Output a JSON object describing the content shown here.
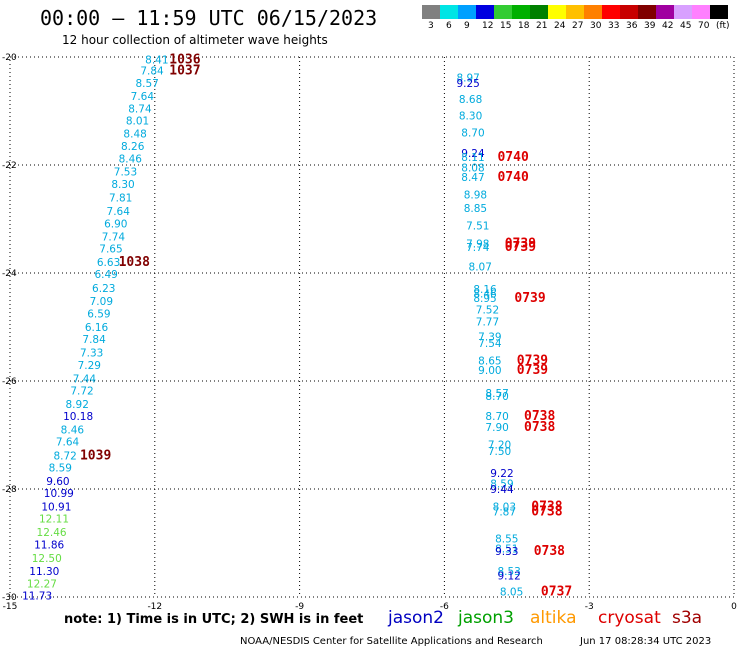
{
  "title": "00:00 – 11:59 UTC 06/15/2023",
  "subtitle": "12 hour collection of altimeter wave heights",
  "colorbar": {
    "colors": [
      "#808080",
      "#00e5e5",
      "#00a0ff",
      "#0000e0",
      "#33cc33",
      "#00b000",
      "#008000",
      "#ffff00",
      "#ffc000",
      "#ff8000",
      "#ff0000",
      "#c80000",
      "#800000",
      "#a000a0",
      "#d8a0ff",
      "#ff80ff",
      "#000000"
    ],
    "labels": [
      "3",
      "6",
      "9",
      "12",
      "15",
      "18",
      "21",
      "24",
      "27",
      "30",
      "33",
      "36",
      "39",
      "42",
      "45",
      "70",
      "(ft)"
    ]
  },
  "note": "note:  1) Time is in UTC;  2) SWH is in feet",
  "legend": [
    {
      "name": "jason2",
      "color": "#0000c0"
    },
    {
      "name": "jason3",
      "color": "#00a000"
    },
    {
      "name": "altika",
      "color": "#ff9900"
    },
    {
      "name": "cryosat",
      "color": "#dd0000"
    },
    {
      "name": "s3a",
      "color": "#a00000"
    }
  ],
  "footer_left": "NOAA/NESDIS Center for Satellite Applications and Research",
  "footer_right": "Jun 17 08:28:34 UTC 2023",
  "chart_data": {
    "type": "scatter",
    "xlim": [
      -15,
      0
    ],
    "ylim": [
      -30,
      -20
    ],
    "x_ticks": [
      -15,
      -12,
      -9,
      -6,
      -3,
      0
    ],
    "y_ticks": [
      -20,
      -22,
      -24,
      -26,
      -28,
      -30
    ],
    "grid": true,
    "labels": [
      {
        "x": -12.2,
        "y": -20.05,
        "t": "8.41",
        "c": "#00aadd"
      },
      {
        "x": -12.3,
        "y": -20.25,
        "t": "7.84",
        "c": "#00aadd"
      },
      {
        "x": -12.4,
        "y": -20.48,
        "t": "8.57",
        "c": "#00aadd"
      },
      {
        "x": -12.5,
        "y": -20.72,
        "t": "7.64",
        "c": "#00aadd"
      },
      {
        "x": -12.55,
        "y": -20.95,
        "t": "8.74",
        "c": "#00aadd"
      },
      {
        "x": -12.6,
        "y": -21.18,
        "t": "8.01",
        "c": "#00aadd"
      },
      {
        "x": -12.65,
        "y": -21.42,
        "t": "8.48",
        "c": "#00aadd"
      },
      {
        "x": -12.7,
        "y": -21.65,
        "t": "8.26",
        "c": "#00aadd"
      },
      {
        "x": -12.75,
        "y": -21.88,
        "t": "8.46",
        "c": "#00aadd"
      },
      {
        "x": -12.85,
        "y": -22.12,
        "t": "7.53",
        "c": "#00aadd"
      },
      {
        "x": -12.9,
        "y": -22.35,
        "t": "8.30",
        "c": "#00aadd"
      },
      {
        "x": -12.95,
        "y": -22.6,
        "t": "7.81",
        "c": "#00aadd"
      },
      {
        "x": -13.0,
        "y": -22.85,
        "t": "7.64",
        "c": "#00aadd"
      },
      {
        "x": -13.05,
        "y": -23.08,
        "t": "6.90",
        "c": "#00aadd"
      },
      {
        "x": -13.1,
        "y": -23.32,
        "t": "7.74",
        "c": "#00aadd"
      },
      {
        "x": -13.15,
        "y": -23.55,
        "t": "7.65",
        "c": "#00aadd"
      },
      {
        "x": -13.2,
        "y": -23.8,
        "t": "6.63",
        "c": "#00aadd"
      },
      {
        "x": -13.25,
        "y": -24.02,
        "t": "6.49",
        "c": "#00aadd"
      },
      {
        "x": -13.3,
        "y": -24.28,
        "t": "6.23",
        "c": "#00aadd"
      },
      {
        "x": -13.35,
        "y": -24.52,
        "t": "7.09",
        "c": "#00aadd"
      },
      {
        "x": -13.4,
        "y": -24.75,
        "t": "6.59",
        "c": "#00aadd"
      },
      {
        "x": -13.45,
        "y": -25.0,
        "t": "6.16",
        "c": "#00aadd"
      },
      {
        "x": -13.5,
        "y": -25.22,
        "t": "7.84",
        "c": "#00aadd"
      },
      {
        "x": -13.55,
        "y": -25.47,
        "t": "7.33",
        "c": "#00aadd"
      },
      {
        "x": -13.6,
        "y": -25.7,
        "t": "7.29",
        "c": "#00aadd"
      },
      {
        "x": -13.7,
        "y": -25.95,
        "t": "7.44",
        "c": "#00aadd"
      },
      {
        "x": -13.75,
        "y": -26.18,
        "t": "7.72",
        "c": "#00aadd"
      },
      {
        "x": -13.85,
        "y": -26.43,
        "t": "8.92",
        "c": "#00aadd"
      },
      {
        "x": -13.9,
        "y": -26.65,
        "t": "10.18",
        "c": "#0000cc"
      },
      {
        "x": -13.95,
        "y": -26.9,
        "t": "8.46",
        "c": "#00aadd"
      },
      {
        "x": -14.05,
        "y": -27.12,
        "t": "7.64",
        "c": "#00aadd"
      },
      {
        "x": -14.1,
        "y": -27.38,
        "t": "8.72",
        "c": "#00aadd"
      },
      {
        "x": -14.2,
        "y": -27.6,
        "t": "8.59",
        "c": "#00aadd"
      },
      {
        "x": -14.25,
        "y": -27.85,
        "t": "9.60",
        "c": "#0000cc"
      },
      {
        "x": -14.3,
        "y": -28.07,
        "t": "10.99",
        "c": "#0000cc"
      },
      {
        "x": -14.35,
        "y": -28.32,
        "t": "10.91",
        "c": "#0000cc"
      },
      {
        "x": -14.4,
        "y": -28.55,
        "t": "12.11",
        "c": "#66dd44"
      },
      {
        "x": -14.45,
        "y": -28.8,
        "t": "12.46",
        "c": "#66dd44"
      },
      {
        "x": -14.5,
        "y": -29.03,
        "t": "11.86",
        "c": "#0000cc"
      },
      {
        "x": -14.55,
        "y": -29.28,
        "t": "12.50",
        "c": "#66dd44"
      },
      {
        "x": -14.6,
        "y": -29.52,
        "t": "11.30",
        "c": "#0000cc"
      },
      {
        "x": -14.65,
        "y": -29.75,
        "t": "12.27",
        "c": "#66dd44"
      },
      {
        "x": -14.75,
        "y": -29.97,
        "t": "11.73",
        "c": "#0000cc"
      },
      {
        "x": -11.7,
        "y": -20.05,
        "t": "1036",
        "c": "#800000"
      },
      {
        "x": -11.7,
        "y": -20.25,
        "t": "1037",
        "c": "#800000"
      },
      {
        "x": -12.75,
        "y": -23.8,
        "t": "1038",
        "c": "#800000"
      },
      {
        "x": -13.55,
        "y": -27.38,
        "t": "1039",
        "c": "#800000"
      },
      {
        "x": -5.75,
        "y": -20.38,
        "t": "8.97",
        "c": "#00aadd"
      },
      {
        "x": -5.75,
        "y": -20.48,
        "t": "9.25",
        "c": "#0000cc"
      },
      {
        "x": -5.7,
        "y": -20.78,
        "t": "8.68",
        "c": "#00aadd"
      },
      {
        "x": -5.7,
        "y": -21.08,
        "t": "8.30",
        "c": "#00aadd"
      },
      {
        "x": -5.65,
        "y": -21.4,
        "t": "8.70",
        "c": "#00aadd"
      },
      {
        "x": -5.65,
        "y": -21.78,
        "t": "9.24",
        "c": "#0000cc"
      },
      {
        "x": -5.65,
        "y": -21.85,
        "t": "8.11",
        "c": "#00aadd"
      },
      {
        "x": -5.65,
        "y": -22.05,
        "t": "8.08",
        "c": "#00aadd"
      },
      {
        "x": -5.65,
        "y": -22.22,
        "t": "8.47",
        "c": "#00aadd"
      },
      {
        "x": -5.6,
        "y": -22.55,
        "t": "8.98",
        "c": "#00aadd"
      },
      {
        "x": -5.6,
        "y": -22.8,
        "t": "8.85",
        "c": "#00aadd"
      },
      {
        "x": -5.55,
        "y": -23.12,
        "t": "7.51",
        "c": "#00aadd"
      },
      {
        "x": -5.55,
        "y": -23.45,
        "t": "7.98",
        "c": "#00aadd"
      },
      {
        "x": -5.55,
        "y": -23.52,
        "t": "7.74",
        "c": "#00aadd"
      },
      {
        "x": -5.5,
        "y": -23.88,
        "t": "8.07",
        "c": "#00aadd"
      },
      {
        "x": -5.4,
        "y": -24.3,
        "t": "8.16",
        "c": "#00aadd"
      },
      {
        "x": -5.4,
        "y": -24.38,
        "t": "8.46",
        "c": "#00aadd"
      },
      {
        "x": -5.4,
        "y": -24.46,
        "t": "8.95",
        "c": "#00aadd"
      },
      {
        "x": -5.35,
        "y": -24.68,
        "t": "7.52",
        "c": "#00aadd"
      },
      {
        "x": -5.35,
        "y": -24.9,
        "t": "7.77",
        "c": "#00aadd"
      },
      {
        "x": -5.3,
        "y": -25.18,
        "t": "7.39",
        "c": "#00aadd"
      },
      {
        "x": -5.3,
        "y": -25.3,
        "t": "7.54",
        "c": "#00aadd"
      },
      {
        "x": -5.3,
        "y": -25.62,
        "t": "8.65",
        "c": "#00aadd"
      },
      {
        "x": -5.3,
        "y": -25.8,
        "t": "9.00",
        "c": "#00aadd"
      },
      {
        "x": -5.15,
        "y": -26.22,
        "t": "8.57",
        "c": "#00aadd"
      },
      {
        "x": -5.15,
        "y": -26.28,
        "t": "8.70",
        "c": "#00aadd"
      },
      {
        "x": -5.15,
        "y": -26.65,
        "t": "8.70",
        "c": "#00aadd"
      },
      {
        "x": -5.15,
        "y": -26.85,
        "t": "7.90",
        "c": "#00aadd"
      },
      {
        "x": -5.1,
        "y": -27.18,
        "t": "7.20",
        "c": "#00aadd"
      },
      {
        "x": -5.1,
        "y": -27.3,
        "t": "7.50",
        "c": "#00aadd"
      },
      {
        "x": -5.05,
        "y": -27.7,
        "t": "9.22",
        "c": "#0000cc"
      },
      {
        "x": -5.05,
        "y": -27.9,
        "t": "8.59",
        "c": "#00aadd"
      },
      {
        "x": -5.05,
        "y": -28.0,
        "t": "9.44",
        "c": "#0000cc"
      },
      {
        "x": -5.0,
        "y": -28.32,
        "t": "8.03",
        "c": "#00aadd"
      },
      {
        "x": -5.0,
        "y": -28.42,
        "t": "7.87",
        "c": "#00aadd"
      },
      {
        "x": -4.95,
        "y": -28.92,
        "t": "8.55",
        "c": "#00aadd"
      },
      {
        "x": -4.95,
        "y": -29.1,
        "t": "8.51",
        "c": "#00aadd"
      },
      {
        "x": -4.95,
        "y": -29.15,
        "t": "9.33",
        "c": "#0000cc"
      },
      {
        "x": -4.9,
        "y": -29.52,
        "t": "8.53",
        "c": "#00aadd"
      },
      {
        "x": -4.9,
        "y": -29.6,
        "t": "9.12",
        "c": "#0000cc"
      },
      {
        "x": -4.85,
        "y": -29.9,
        "t": "8.05",
        "c": "#00aadd"
      },
      {
        "x": -4.9,
        "y": -21.85,
        "t": "0740",
        "c": "#dd0000"
      },
      {
        "x": -4.9,
        "y": -22.22,
        "t": "0740",
        "c": "#dd0000"
      },
      {
        "x": -4.75,
        "y": -23.45,
        "t": "0739",
        "c": "#dd0000"
      },
      {
        "x": -4.75,
        "y": -23.52,
        "t": "0739",
        "c": "#dd0000"
      },
      {
        "x": -4.55,
        "y": -24.46,
        "t": "0739",
        "c": "#dd0000"
      },
      {
        "x": -4.5,
        "y": -25.62,
        "t": "0739",
        "c": "#dd0000"
      },
      {
        "x": -4.5,
        "y": -25.8,
        "t": "0739",
        "c": "#dd0000"
      },
      {
        "x": -4.35,
        "y": -26.65,
        "t": "0738",
        "c": "#dd0000"
      },
      {
        "x": -4.35,
        "y": -26.85,
        "t": "0738",
        "c": "#dd0000"
      },
      {
        "x": -4.2,
        "y": -28.32,
        "t": "0738",
        "c": "#dd0000"
      },
      {
        "x": -4.2,
        "y": -28.42,
        "t": "0738",
        "c": "#dd0000"
      },
      {
        "x": -4.15,
        "y": -29.15,
        "t": "0738",
        "c": "#dd0000"
      },
      {
        "x": -4.0,
        "y": -29.9,
        "t": "0737",
        "c": "#dd0000"
      }
    ]
  }
}
